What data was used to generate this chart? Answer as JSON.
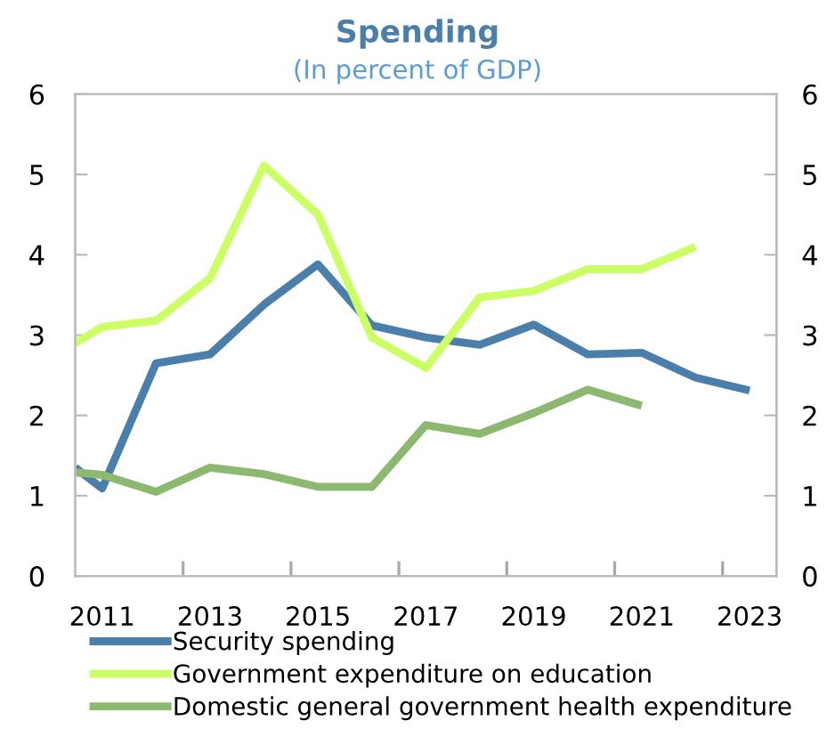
{
  "chart_data": {
    "type": "line",
    "title": "Spending",
    "subtitle": "(In percent of GDP)",
    "x": [
      2010.5,
      2011,
      2012,
      2013,
      2014,
      2015,
      2016,
      2017,
      2018,
      2019,
      2020,
      2021,
      2022,
      2023
    ],
    "series": [
      {
        "name": "Security spending",
        "color": "#4a7fab",
        "values": [
          1.35,
          1.09,
          2.65,
          2.76,
          3.38,
          3.88,
          3.12,
          2.97,
          2.88,
          3.13,
          2.76,
          2.78,
          2.47,
          2.31
        ]
      },
      {
        "name": "Government expenditure on education",
        "color": "#ccff66",
        "values": [
          2.9,
          3.1,
          3.18,
          3.71,
          5.11,
          4.5,
          2.97,
          2.59,
          3.47,
          3.55,
          3.82,
          3.82,
          4.1,
          null
        ]
      },
      {
        "name": "Domestic general government health expenditure",
        "color": "#8db870",
        "values": [
          1.29,
          1.26,
          1.05,
          1.35,
          1.27,
          1.11,
          1.11,
          1.88,
          1.77,
          2.03,
          2.32,
          2.12,
          null,
          null
        ]
      }
    ],
    "xlim": [
      2010.5,
      2023.5
    ],
    "xticks": [
      2011,
      2013,
      2015,
      2017,
      2019,
      2021,
      2023,
      {
        "value": 2012.5,
        "label": null
      },
      {
        "value": 2014.5,
        "label": null
      },
      {
        "value": 2016.5,
        "label": null
      },
      {
        "value": 2018.5,
        "label": null
      },
      {
        "value": 2020.5,
        "label": null
      },
      {
        "value": 2022.5,
        "label": null
      }
    ],
    "ylim": [
      0,
      6
    ],
    "yticks": [
      0,
      1,
      2,
      3,
      4,
      5,
      6
    ],
    "y2lim": [
      0,
      6
    ],
    "y2ticks": [
      0,
      1,
      2,
      3,
      4,
      5,
      6
    ],
    "grid": false,
    "legend": "bottom",
    "marker": "none",
    "line_style": "solid"
  }
}
